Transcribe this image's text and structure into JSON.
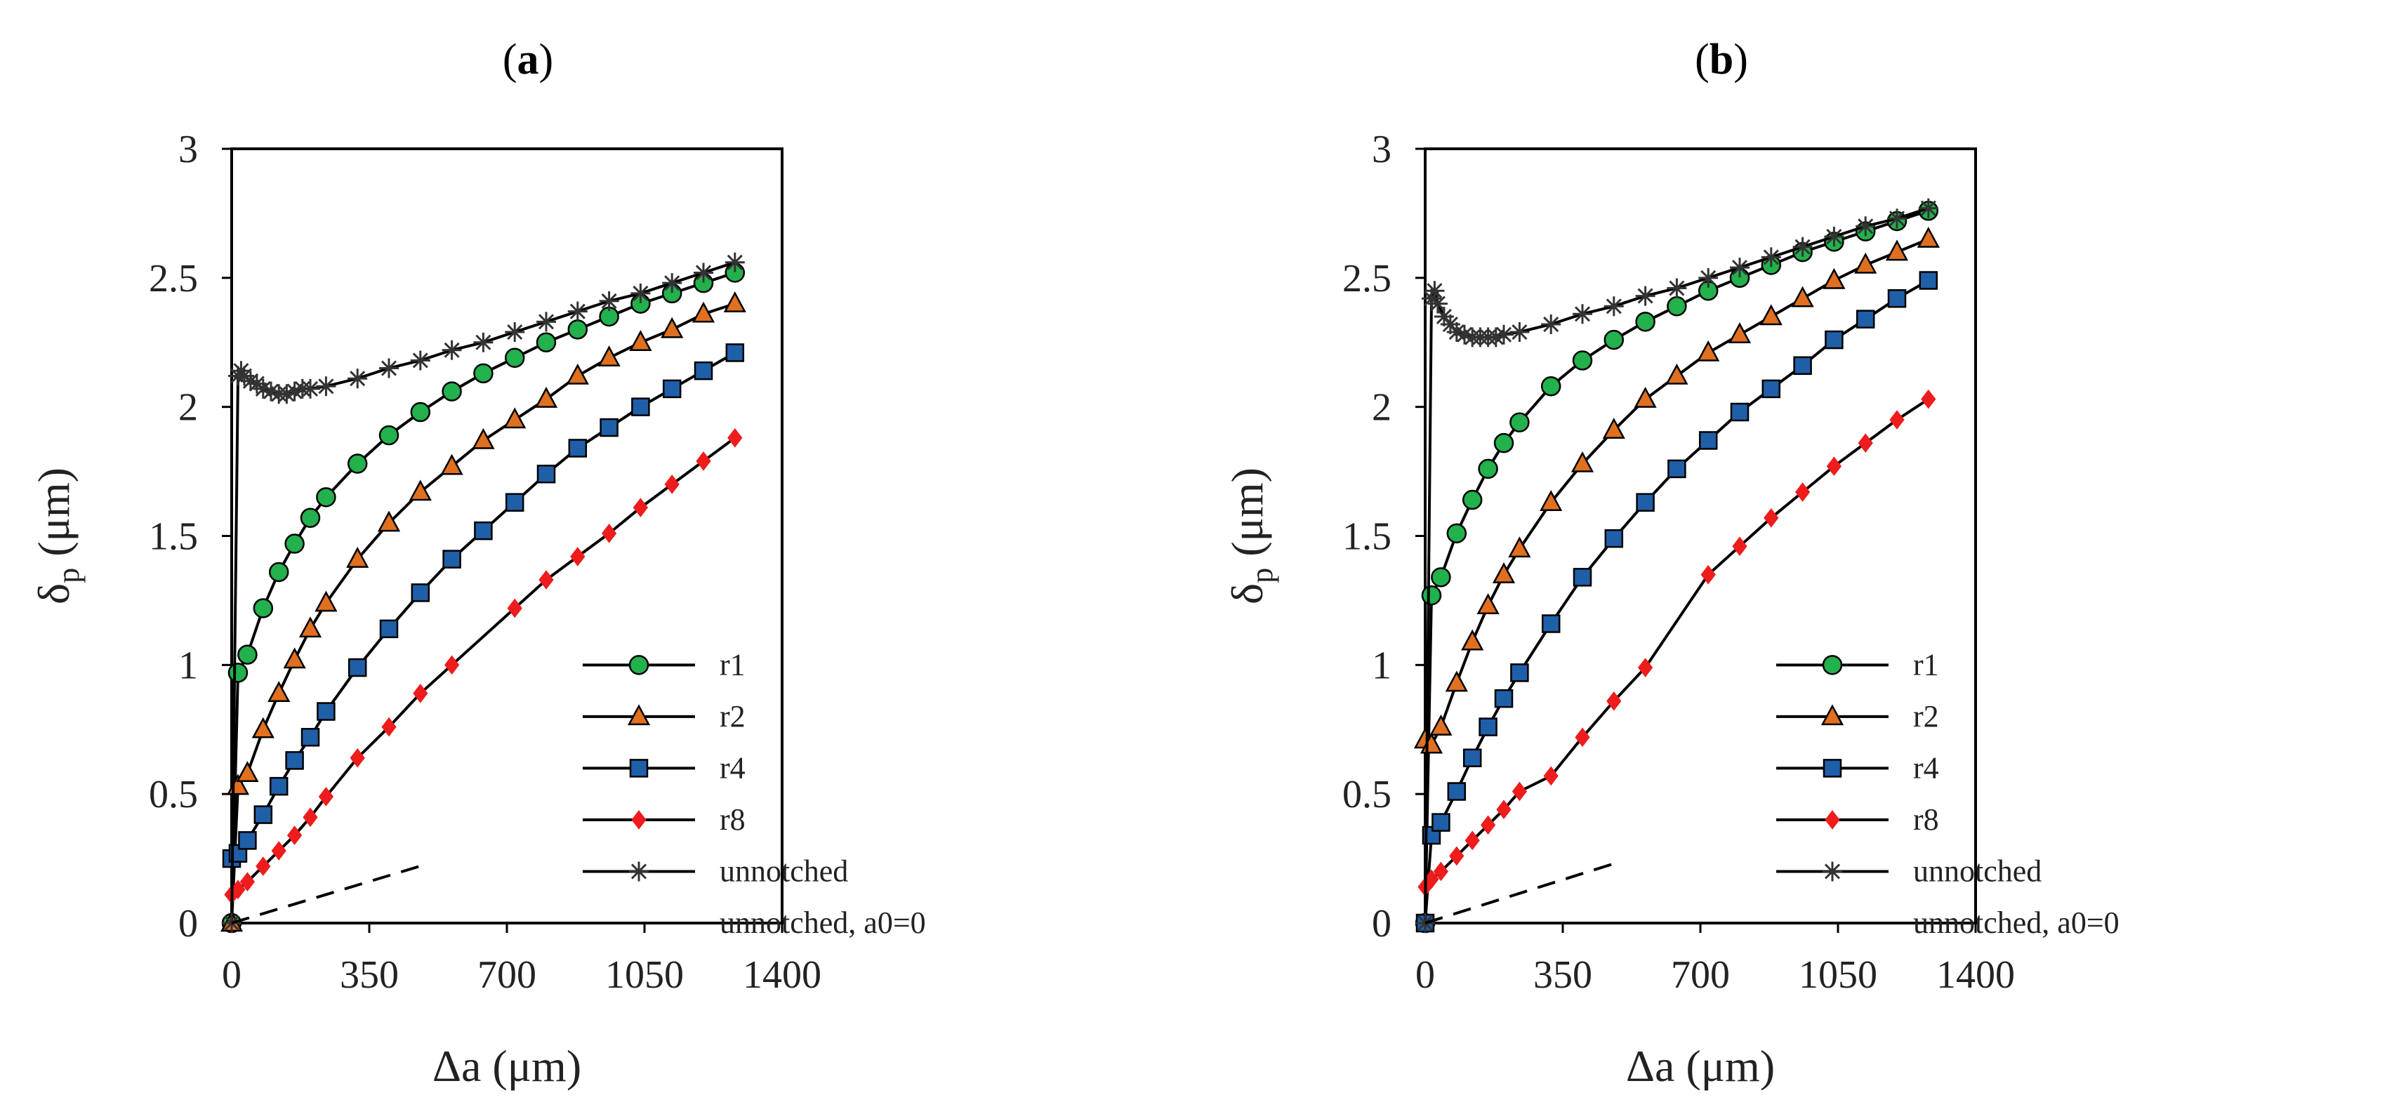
{
  "chart_data": [
    {
      "panel_label": "a",
      "type": "line",
      "xlabel": "Δa (μm)",
      "ylabel_main": "δ",
      "ylabel_sub": "p",
      "ylabel_unit": " (μm)",
      "xlim": [
        0,
        1400
      ],
      "ylim": [
        0,
        3
      ],
      "x_ticks": [
        0,
        350,
        700,
        1050,
        1400
      ],
      "y_ticks": [
        0,
        0.5,
        1,
        1.5,
        2,
        2.5,
        3
      ],
      "x_tick_labels": [
        "0",
        "350",
        "700",
        "1050",
        "1400"
      ],
      "y_tick_labels": [
        "0",
        "0.5",
        "1",
        "1.5",
        "2",
        "2.5",
        "3"
      ],
      "legend_position": "bottom-right",
      "series": [
        {
          "name": "r1",
          "marker": "circle",
          "color": "#22b14c",
          "x": [
            0,
            16,
            40,
            80,
            120,
            160,
            200,
            240,
            320,
            400,
            480,
            560,
            640,
            720,
            800,
            880,
            960,
            1040,
            1120,
            1200,
            1280
          ],
          "y": [
            0,
            0.97,
            1.04,
            1.22,
            1.36,
            1.47,
            1.57,
            1.65,
            1.78,
            1.89,
            1.98,
            2.06,
            2.13,
            2.19,
            2.25,
            2.3,
            2.35,
            2.4,
            2.44,
            2.48,
            2.52
          ]
        },
        {
          "name": "r2",
          "marker": "triangle",
          "color": "#e07020",
          "x": [
            0,
            16,
            40,
            80,
            120,
            160,
            200,
            240,
            320,
            400,
            480,
            560,
            640,
            720,
            800,
            880,
            960,
            1040,
            1120,
            1200,
            1280
          ],
          "y": [
            0,
            0.53,
            0.58,
            0.75,
            0.89,
            1.02,
            1.14,
            1.24,
            1.41,
            1.55,
            1.67,
            1.77,
            1.87,
            1.95,
            2.03,
            2.12,
            2.19,
            2.25,
            2.3,
            2.36,
            2.4
          ]
        },
        {
          "name": "r4",
          "marker": "square",
          "color": "#1f5fa8",
          "x": [
            0,
            16,
            40,
            80,
            120,
            160,
            200,
            240,
            320,
            400,
            480,
            560,
            640,
            720,
            800,
            880,
            960,
            1040,
            1120,
            1200,
            1280
          ],
          "y": [
            0.25,
            0.27,
            0.32,
            0.42,
            0.53,
            0.63,
            0.72,
            0.82,
            0.99,
            1.14,
            1.28,
            1.41,
            1.52,
            1.63,
            1.74,
            1.84,
            1.92,
            2.0,
            2.07,
            2.14,
            2.21
          ]
        },
        {
          "name": "r8",
          "marker": "diamond",
          "color": "#ee1c1c",
          "x": [
            0,
            16,
            40,
            80,
            120,
            160,
            200,
            240,
            320,
            400,
            480,
            560,
            720,
            800,
            880,
            960,
            1040,
            1120,
            1200,
            1280
          ],
          "y": [
            0.11,
            0.13,
            0.16,
            0.22,
            0.28,
            0.34,
            0.41,
            0.49,
            0.64,
            0.76,
            0.89,
            1.0,
            1.22,
            1.33,
            1.42,
            1.51,
            1.61,
            1.7,
            1.79,
            1.88
          ]
        },
        {
          "name": "unnotched",
          "marker": "asterisk",
          "color": "#000000",
          "x": [
            0,
            16,
            24,
            32,
            48,
            64,
            80,
            100,
            120,
            140,
            160,
            180,
            200,
            240,
            320,
            400,
            480,
            560,
            640,
            720,
            800,
            880,
            960,
            1040,
            1120,
            1200,
            1280
          ],
          "y": [
            0,
            2.12,
            2.14,
            2.12,
            2.1,
            2.09,
            2.07,
            2.06,
            2.05,
            2.05,
            2.06,
            2.07,
            2.07,
            2.08,
            2.11,
            2.15,
            2.18,
            2.22,
            2.25,
            2.29,
            2.33,
            2.37,
            2.41,
            2.44,
            2.48,
            2.52,
            2.56
          ]
        },
        {
          "name": "unnotched, a0=0",
          "marker": "none",
          "dashed": true,
          "color": "#000000",
          "x": [
            0,
            500
          ],
          "y": [
            0,
            0.23
          ]
        }
      ]
    },
    {
      "panel_label": "b",
      "type": "line",
      "xlabel": "Δa (μm)",
      "ylabel_main": "δ",
      "ylabel_sub": "p",
      "ylabel_unit": " (μm)",
      "xlim": [
        0,
        1400
      ],
      "ylim": [
        0,
        3
      ],
      "x_ticks": [
        0,
        350,
        700,
        1050,
        1400
      ],
      "y_ticks": [
        0,
        0.5,
        1,
        1.5,
        2,
        2.5,
        3
      ],
      "x_tick_labels": [
        "0",
        "350",
        "700",
        "1050",
        "1400"
      ],
      "y_tick_labels": [
        "0",
        "0.5",
        "1",
        "1.5",
        "2",
        "2.5",
        "3"
      ],
      "legend_position": "bottom-right",
      "series": [
        {
          "name": "r1",
          "marker": "circle",
          "color": "#22b14c",
          "x": [
            0,
            16,
            40,
            80,
            120,
            160,
            200,
            240,
            320,
            400,
            480,
            560,
            640,
            720,
            800,
            880,
            960,
            1040,
            1120,
            1200,
            1280
          ],
          "y": [
            0,
            1.27,
            1.34,
            1.51,
            1.64,
            1.76,
            1.86,
            1.94,
            2.08,
            2.18,
            2.26,
            2.33,
            2.39,
            2.45,
            2.5,
            2.55,
            2.6,
            2.64,
            2.68,
            2.72,
            2.76
          ]
        },
        {
          "name": "r2",
          "marker": "triangle",
          "color": "#e07020",
          "x": [
            0,
            16,
            40,
            80,
            120,
            160,
            200,
            240,
            320,
            400,
            480,
            560,
            640,
            720,
            800,
            880,
            960,
            1040,
            1120,
            1200,
            1280
          ],
          "y": [
            0.71,
            0.69,
            0.76,
            0.93,
            1.09,
            1.23,
            1.35,
            1.45,
            1.63,
            1.78,
            1.91,
            2.03,
            2.12,
            2.21,
            2.28,
            2.35,
            2.42,
            2.49,
            2.55,
            2.6,
            2.65
          ]
        },
        {
          "name": "r4",
          "marker": "square",
          "color": "#1f5fa8",
          "x": [
            0,
            16,
            40,
            80,
            120,
            160,
            200,
            240,
            320,
            400,
            480,
            560,
            640,
            720,
            800,
            880,
            960,
            1040,
            1120,
            1200,
            1280
          ],
          "y": [
            0,
            0.34,
            0.39,
            0.51,
            0.64,
            0.76,
            0.87,
            0.97,
            1.16,
            1.34,
            1.49,
            1.63,
            1.76,
            1.87,
            1.98,
            2.07,
            2.16,
            2.26,
            2.34,
            2.42,
            2.49
          ]
        },
        {
          "name": "r8",
          "marker": "diamond",
          "color": "#ee1c1c",
          "x": [
            0,
            16,
            40,
            80,
            120,
            160,
            200,
            240,
            320,
            400,
            480,
            560,
            720,
            800,
            880,
            960,
            1040,
            1120,
            1200,
            1280
          ],
          "y": [
            0.14,
            0.17,
            0.2,
            0.26,
            0.32,
            0.38,
            0.44,
            0.51,
            0.57,
            0.72,
            0.86,
            0.99,
            1.35,
            1.46,
            1.57,
            1.67,
            1.77,
            1.86,
            1.95,
            2.03
          ]
        },
        {
          "name": "unnotched",
          "marker": "asterisk",
          "color": "#000000",
          "x": [
            0,
            16,
            24,
            32,
            48,
            64,
            80,
            100,
            120,
            140,
            160,
            180,
            200,
            240,
            320,
            400,
            480,
            560,
            640,
            720,
            800,
            880,
            960,
            1040,
            1120,
            1200,
            1280
          ],
          "y": [
            0,
            2.42,
            2.45,
            2.4,
            2.35,
            2.32,
            2.29,
            2.28,
            2.27,
            2.27,
            2.27,
            2.27,
            2.28,
            2.29,
            2.32,
            2.36,
            2.39,
            2.43,
            2.46,
            2.5,
            2.54,
            2.58,
            2.62,
            2.66,
            2.7,
            2.73,
            2.77
          ]
        },
        {
          "name": "unnotched, a0=0",
          "marker": "none",
          "dashed": true,
          "color": "#000000",
          "x": [
            0,
            500
          ],
          "y": [
            0,
            0.24
          ]
        }
      ]
    }
  ]
}
